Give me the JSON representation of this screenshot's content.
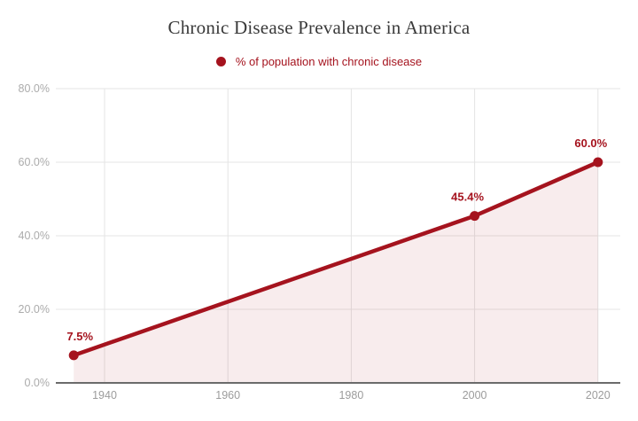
{
  "chart_data": {
    "type": "line",
    "title": "Chronic Disease Prevalence in America",
    "legend_position": "top",
    "grid": true,
    "series": [
      {
        "name": "% of population with chronic disease",
        "color": "#a5131e",
        "area_fill": true,
        "area_fill_opacity": 0.08,
        "marker": "circle",
        "points": [
          {
            "x": 1935,
            "y": 7.5,
            "label": "7.5%"
          },
          {
            "x": 2000,
            "y": 45.4,
            "label": "45.4%"
          },
          {
            "x": 2020,
            "y": 60.0,
            "label": "60.0%"
          }
        ]
      }
    ],
    "x_axis": {
      "range": [
        1932,
        2024
      ],
      "ticks": [
        {
          "value": 1940,
          "label": "1940"
        },
        {
          "value": 1960,
          "label": "1960"
        },
        {
          "value": 1980,
          "label": "1980"
        },
        {
          "value": 2000,
          "label": "2000"
        },
        {
          "value": 2020,
          "label": "2020"
        }
      ]
    },
    "y_axis": {
      "range": [
        0,
        80
      ],
      "ticks": [
        {
          "value": 0,
          "label": "0.0%"
        },
        {
          "value": 20,
          "label": "20.0%"
        },
        {
          "value": 40,
          "label": "40.0%"
        },
        {
          "value": 60,
          "label": "60.0%"
        },
        {
          "value": 80,
          "label": "80.0%"
        }
      ]
    },
    "colors": {
      "series": "#a5131e",
      "grid_line": "#e4e4e4",
      "axis_line": "#6b6b6b",
      "y_tick_label": "#ababab",
      "x_tick_label": "#9c9c9c",
      "title": "#3a3a3a"
    }
  }
}
